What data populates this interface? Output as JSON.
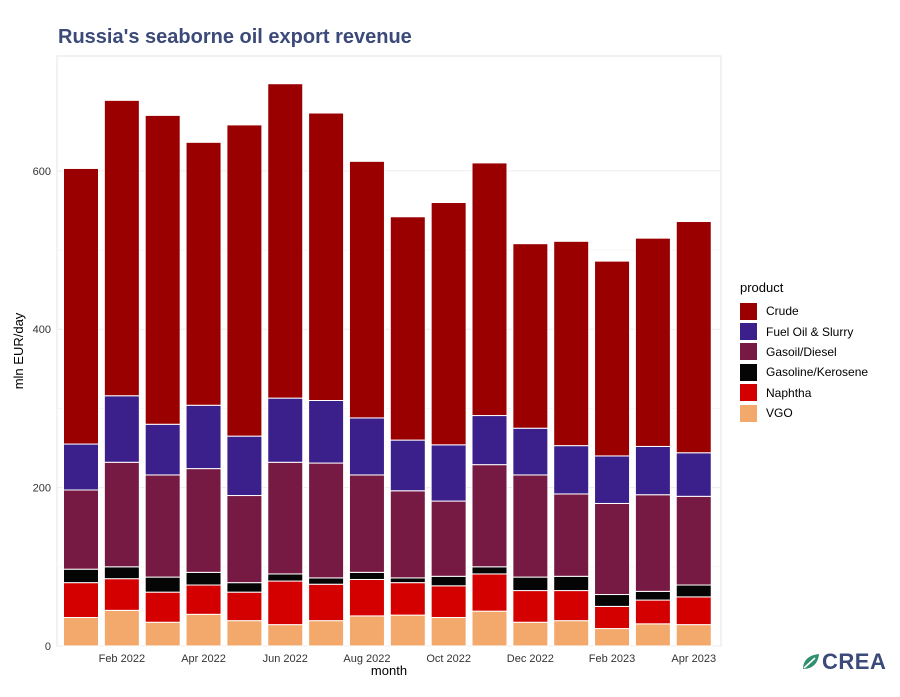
{
  "chart_data": {
    "type": "bar",
    "stacked": true,
    "title": "Russia's seaborne oil export revenue",
    "xlabel": "month",
    "ylabel": "mln EUR/day",
    "ylim": [
      0,
      745
    ],
    "y_ticks": [
      0,
      200,
      400,
      600
    ],
    "x_tick_labels": [
      {
        "index": 1,
        "label": "Feb 2022"
      },
      {
        "index": 3,
        "label": "Apr 2022"
      },
      {
        "index": 5,
        "label": "Jun 2022"
      },
      {
        "index": 7,
        "label": "Aug 2022"
      },
      {
        "index": 9,
        "label": "Oct 2022"
      },
      {
        "index": 11,
        "label": "Dec 2022"
      },
      {
        "index": 13,
        "label": "Feb 2023"
      },
      {
        "index": 15,
        "label": "Apr 2023"
      }
    ],
    "categories": [
      "Jan 2022",
      "Feb 2022",
      "Mar 2022",
      "Apr 2022",
      "May 2022",
      "Jun 2022",
      "Jul 2022",
      "Aug 2022",
      "Sep 2022",
      "Oct 2022",
      "Nov 2022",
      "Dec 2022",
      "Jan 2023",
      "Feb 2023",
      "Mar 2023",
      "Apr 2023"
    ],
    "legend_title": "product",
    "legend_position": "right",
    "grid": true,
    "series": [
      {
        "name": "VGO",
        "color": "#f4a96c",
        "values": [
          36,
          45,
          30,
          40,
          32,
          27,
          32,
          38,
          39,
          36,
          44,
          30,
          32,
          22,
          28,
          27
        ]
      },
      {
        "name": "Naphtha",
        "color": "#d40000",
        "values": [
          44,
          40,
          38,
          37,
          36,
          55,
          46,
          46,
          41,
          40,
          47,
          40,
          38,
          28,
          30,
          35
        ]
      },
      {
        "name": "Gasoline/Kerosene",
        "color": "#050505",
        "values": [
          17,
          15,
          19,
          16,
          12,
          9,
          8,
          9,
          6,
          12,
          9,
          17,
          18,
          15,
          11,
          15
        ]
      },
      {
        "name": "Gasoil/Diesel",
        "color": "#761a43",
        "values": [
          100,
          132,
          129,
          131,
          110,
          141,
          145,
          123,
          110,
          95,
          129,
          129,
          104,
          115,
          122,
          112
        ]
      },
      {
        "name": "Fuel Oil & Slurry",
        "color": "#3b1f8a",
        "values": [
          58,
          84,
          64,
          80,
          75,
          81,
          79,
          72,
          64,
          71,
          62,
          59,
          61,
          60,
          61,
          55
        ]
      },
      {
        "name": "Crude",
        "color": "#9a0000",
        "values": [
          348,
          373,
          390,
          332,
          393,
          397,
          363,
          324,
          282,
          306,
          319,
          233,
          258,
          246,
          263,
          292
        ]
      }
    ]
  },
  "logo": {
    "text": "CREA"
  }
}
